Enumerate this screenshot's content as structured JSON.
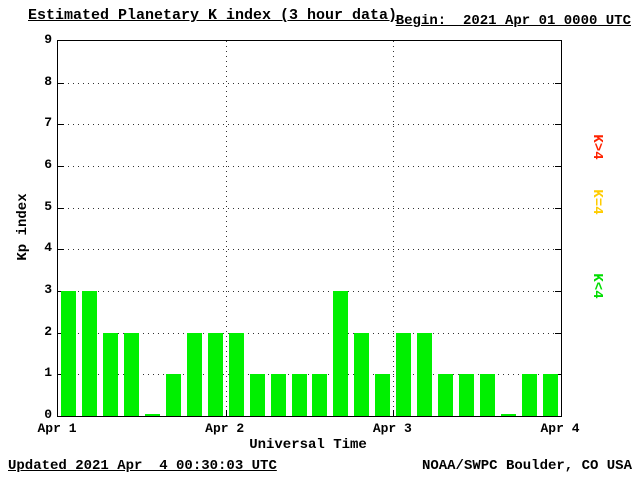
{
  "header": {
    "title": "Estimated Planetary K index (3 hour data)",
    "begin": "Begin:  2021 Apr 01 0000 UTC"
  },
  "footer": {
    "updated": "Updated 2021 Apr  4 00:30:03 UTC",
    "source": "NOAA/SWPC Boulder, CO USA"
  },
  "legend": [
    {
      "label": "K>4",
      "color": "#ff2200"
    },
    {
      "label": "K=4",
      "color": "#ffcc00"
    },
    {
      "label": "K<4",
      "color": "#00dd00"
    }
  ],
  "chart_data": {
    "type": "bar",
    "title": "Estimated Planetary K index (3 hour data)",
    "xlabel": "Universal Time",
    "ylabel": "Kp index",
    "ylim": [
      0,
      9
    ],
    "ytick_labels": [
      "0",
      "1",
      "2",
      "3",
      "4",
      "5",
      "6",
      "7",
      "8",
      "9"
    ],
    "xtick_labels": [
      "Apr 1",
      "Apr 2",
      "Apr 3",
      "Apr 4"
    ],
    "interval_hours": 3,
    "grid": true,
    "bar_color": "#00f000",
    "categories": [
      "Apr 1 00-03",
      "Apr 1 03-06",
      "Apr 1 06-09",
      "Apr 1 09-12",
      "Apr 1 12-15",
      "Apr 1 15-18",
      "Apr 1 18-21",
      "Apr 1 21-24",
      "Apr 2 00-03",
      "Apr 2 03-06",
      "Apr 2 06-09",
      "Apr 2 09-12",
      "Apr 2 12-15",
      "Apr 2 15-18",
      "Apr 2 18-21",
      "Apr 2 21-24",
      "Apr 3 00-03",
      "Apr 3 03-06",
      "Apr 3 06-09",
      "Apr 3 09-12",
      "Apr 3 12-15",
      "Apr 3 15-18",
      "Apr 3 18-21",
      "Apr 3 21-24"
    ],
    "values": [
      3,
      3,
      2,
      2,
      0,
      1,
      2,
      2,
      2,
      1,
      1,
      1,
      1,
      3,
      2,
      1,
      2,
      2,
      1,
      1,
      1,
      0,
      1,
      1
    ]
  }
}
